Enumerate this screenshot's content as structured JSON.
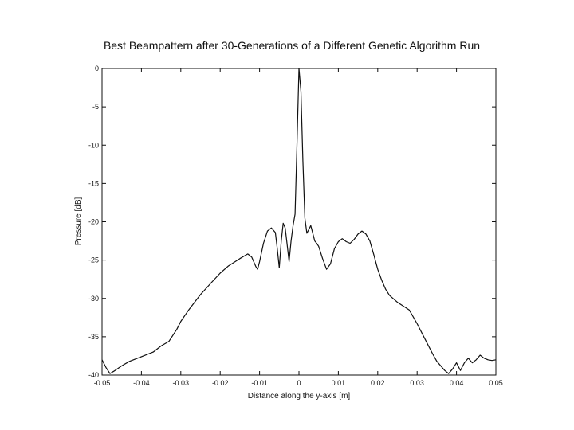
{
  "chart_data": {
    "type": "line",
    "title": "Best Beampattern after 30-Generations of a Different Genetic Algorithm Run",
    "xlabel": "Distance along the y-axis [m]",
    "ylabel": "Pressure [dB]",
    "xlim": [
      -0.05,
      0.05
    ],
    "ylim": [
      -40,
      0
    ],
    "xticks": [
      -0.05,
      -0.04,
      -0.03,
      -0.02,
      -0.01,
      0,
      0.01,
      0.02,
      0.03,
      0.04,
      0.05
    ],
    "xtick_labels": [
      "-0.05",
      "-0.04",
      "-0.03",
      "-0.02",
      "-0.01",
      "0",
      "0.01",
      "0.02",
      "0.03",
      "0.04",
      "0.05"
    ],
    "yticks": [
      0,
      -5,
      -10,
      -15,
      -20,
      -25,
      -30,
      -35,
      -40
    ],
    "ytick_labels": [
      "0",
      "-5",
      "-10",
      "-15",
      "-20",
      "-25",
      "-30",
      "-35",
      "-40"
    ],
    "grid": false,
    "series": [
      {
        "color": "#111111",
        "x": [
          -0.05,
          -0.049,
          -0.048,
          -0.047,
          -0.045,
          -0.043,
          -0.04,
          -0.037,
          -0.035,
          -0.033,
          -0.031,
          -0.03,
          -0.028,
          -0.025,
          -0.022,
          -0.02,
          -0.018,
          -0.015,
          -0.013,
          -0.012,
          -0.011,
          -0.0105,
          -0.01,
          -0.009,
          -0.008,
          -0.007,
          -0.006,
          -0.0055,
          -0.005,
          -0.0045,
          -0.004,
          -0.0035,
          -0.003,
          -0.0025,
          -0.002,
          -0.0015,
          -0.001,
          -0.0005,
          0,
          0.0005,
          0.001,
          0.0015,
          0.002,
          0.0025,
          0.003,
          0.0035,
          0.004,
          0.0045,
          0.005,
          0.006,
          0.007,
          0.008,
          0.009,
          0.01,
          0.011,
          0.012,
          0.013,
          0.014,
          0.015,
          0.016,
          0.017,
          0.018,
          0.019,
          0.02,
          0.021,
          0.022,
          0.023,
          0.025,
          0.028,
          0.03,
          0.032,
          0.034,
          0.035,
          0.036,
          0.037,
          0.038,
          0.039,
          0.04,
          0.041,
          0.042,
          0.043,
          0.044,
          0.045,
          0.046,
          0.047,
          0.048,
          0.049,
          0.05
        ],
        "y": [
          -38,
          -39,
          -39.8,
          -39.5,
          -38.8,
          -38.2,
          -37.6,
          -37,
          -36.2,
          -35.6,
          -34,
          -33,
          -31.5,
          -29.5,
          -27.8,
          -26.7,
          -25.8,
          -24.8,
          -24.2,
          -24.6,
          -25.8,
          -26.2,
          -25.2,
          -22.8,
          -21.2,
          -20.8,
          -21.4,
          -23.5,
          -26,
          -22.5,
          -20.2,
          -20.8,
          -23,
          -25.2,
          -22.5,
          -20.5,
          -19,
          -10,
          0,
          -3,
          -12,
          -19.5,
          -21.5,
          -21,
          -20.5,
          -21.5,
          -22.5,
          -22.8,
          -23.2,
          -24.8,
          -26.2,
          -25.5,
          -23.5,
          -22.6,
          -22.2,
          -22.6,
          -22.8,
          -22.3,
          -21.6,
          -21.2,
          -21.6,
          -22.5,
          -24.3,
          -26.2,
          -27.6,
          -28.8,
          -29.6,
          -30.5,
          -31.5,
          -33.3,
          -35.3,
          -37.3,
          -38.2,
          -38.8,
          -39.4,
          -39.8,
          -39.2,
          -38.4,
          -39.4,
          -38.4,
          -37.8,
          -38.4,
          -38,
          -37.4,
          -37.8,
          -38,
          -38.1,
          -38
        ]
      }
    ]
  }
}
